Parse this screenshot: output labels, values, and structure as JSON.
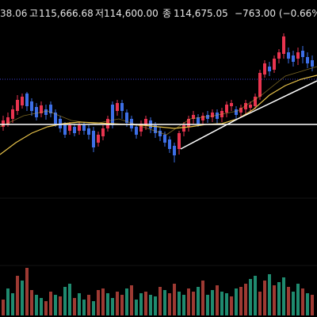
{
  "header": {
    "open_fragment": "38.06",
    "high_label": "고",
    "high_value": "115,666.68",
    "low_label": "저",
    "low_value": "114,600.00",
    "close_label": "종",
    "close_value": "114,675.05",
    "change": "−763.00 (−0.66%)"
  },
  "colors": {
    "background": "#000000",
    "up": "#e8344f",
    "down": "#3d6fe6",
    "ma_short": "#ffffff",
    "ma_long": "#e8c34a",
    "price_line": "#ffffff",
    "dotted_line": "#3d3fd0",
    "vol_up": "#1f8a6f",
    "vol_down": "#9e3a33"
  }
}
